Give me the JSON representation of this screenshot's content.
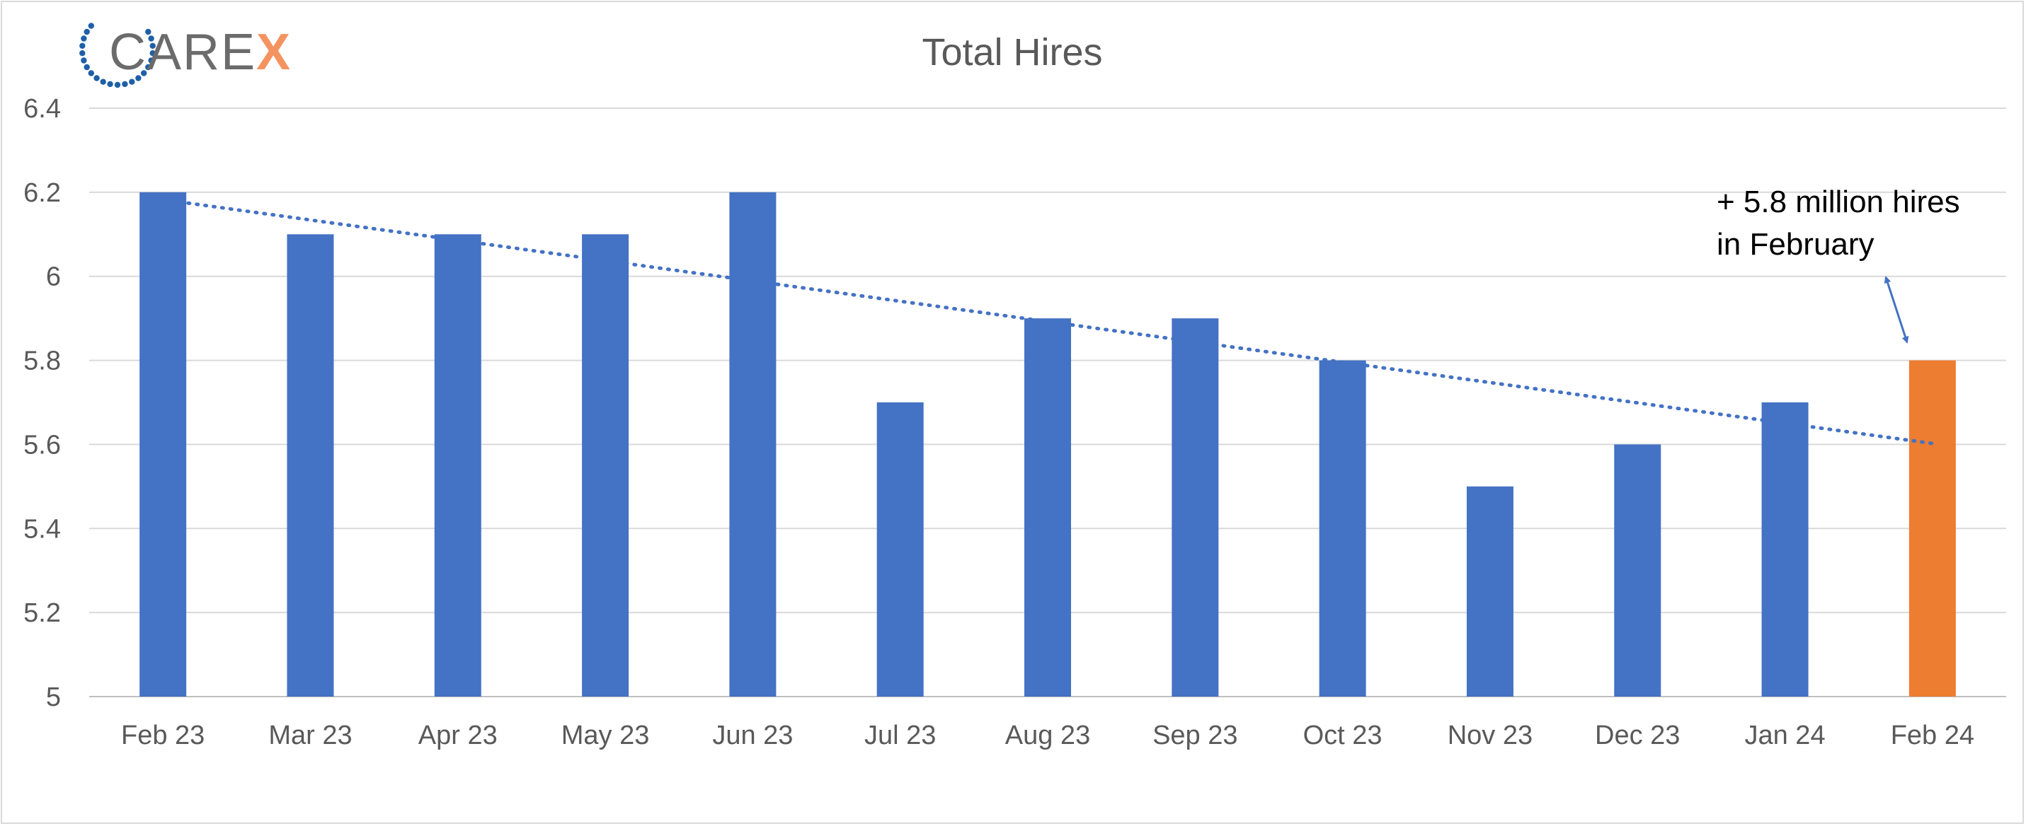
{
  "logo": {
    "text_main": "CARE",
    "text_accent": "X",
    "main_color": "#6b6b6b",
    "accent_color": "#f4935f",
    "dots_color": "#1f5fa8"
  },
  "chart_data": {
    "type": "bar",
    "title": "Total Hires",
    "xlabel": "",
    "ylabel": "",
    "categories": [
      "Feb 23",
      "Mar 23",
      "Apr 23",
      "May 23",
      "Jun 23",
      "Jul 23",
      "Aug 23",
      "Sep 23",
      "Oct 23",
      "Nov 23",
      "Dec 23",
      "Jan 24",
      "Feb 24"
    ],
    "values": [
      6.2,
      6.1,
      6.1,
      6.1,
      6.2,
      5.7,
      5.9,
      5.9,
      5.8,
      5.5,
      5.6,
      5.7,
      5.8
    ],
    "ylim": [
      5,
      6.4
    ],
    "yticks": [
      5,
      5.2,
      5.4,
      5.6,
      5.8,
      6,
      6.2,
      6.4
    ],
    "ytick_labels": [
      "5",
      "5.2",
      "5.4",
      "5.6",
      "5.8",
      "6",
      "6.2",
      "6.4"
    ],
    "grid": true,
    "highlight_index": 12,
    "bar_color": "#4472c4",
    "highlight_color": "#ed7d31",
    "trendline": {
      "type": "linear",
      "style": "dotted",
      "color": "#4472c4"
    },
    "annotation": {
      "lines": [
        "+ 5.8 million hires",
        "in February"
      ],
      "target_category": "Feb 24",
      "target_value": 5.8
    }
  }
}
